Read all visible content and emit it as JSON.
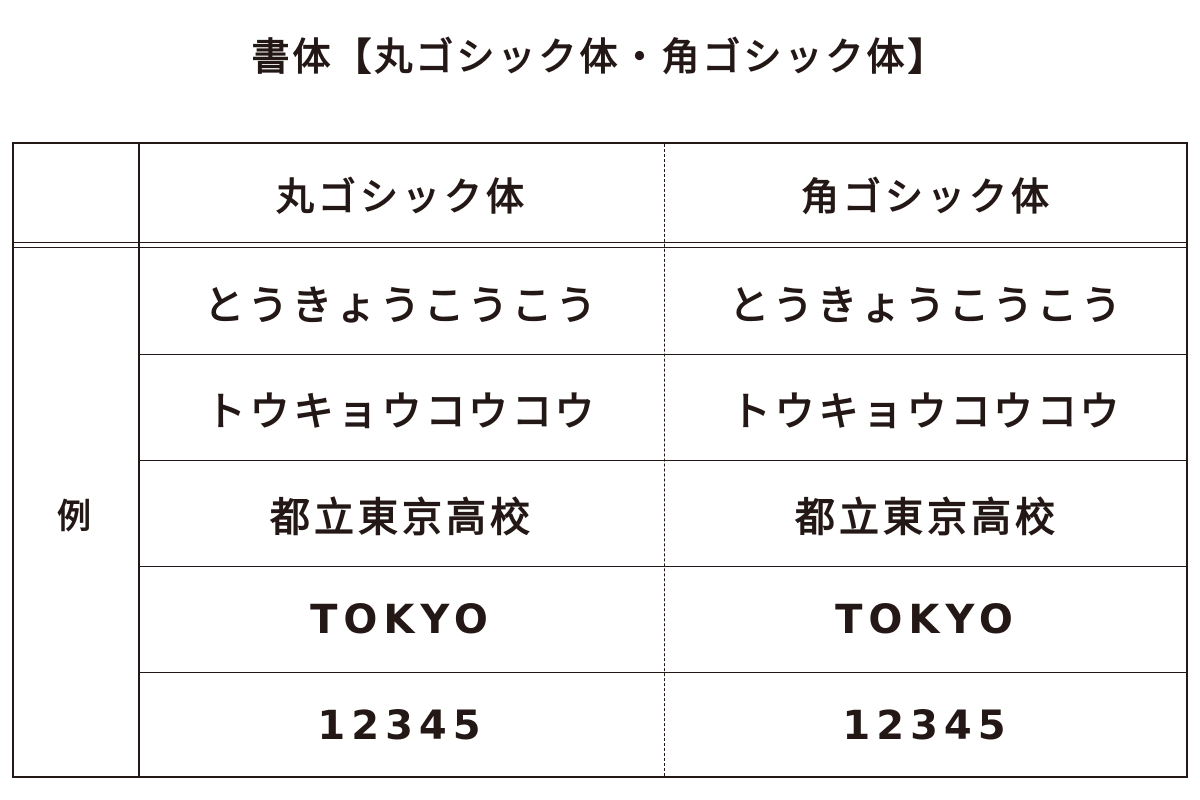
{
  "title": "書体【丸ゴシック体・角ゴシック体】",
  "table": {
    "headers": [
      "",
      "丸ゴシック体",
      "角ゴシック体"
    ],
    "row_label": "例",
    "rows": [
      [
        "とうきょうこうこう",
        "とうきょうこうこう"
      ],
      [
        "トウキョウコウコウ",
        "トウキョウコウコウ"
      ],
      [
        "都立東京高校",
        "都立東京高校"
      ],
      [
        "TOKYO",
        "TOKYO"
      ],
      [
        "12345",
        "12345"
      ]
    ]
  }
}
